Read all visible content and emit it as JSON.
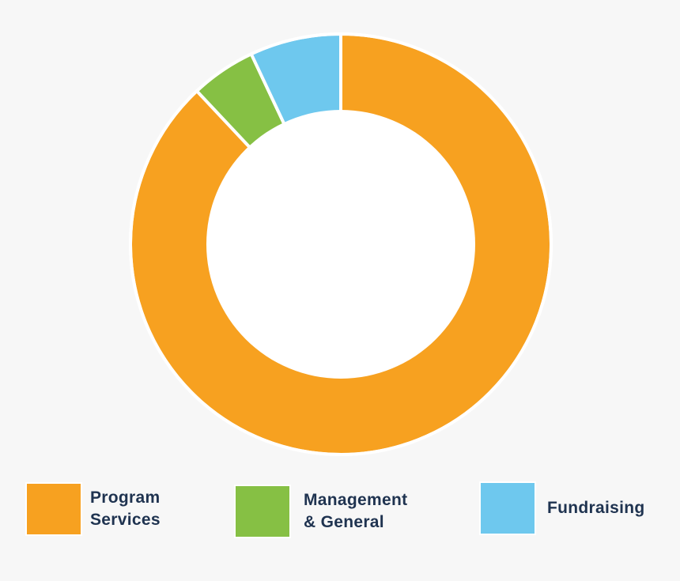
{
  "chart_data": {
    "type": "pie",
    "donut": true,
    "categories": [
      "Program Services",
      "Management & General",
      "Fundraising"
    ],
    "values": [
      88,
      5,
      7
    ],
    "unit": "percent",
    "colors": [
      "#f7a120",
      "#86c044",
      "#6ec8ee"
    ],
    "title": "",
    "legend_position": "bottom"
  },
  "legend": {
    "items": [
      {
        "lines": [
          "Program",
          "Services"
        ],
        "color": "#f7a120"
      },
      {
        "lines": [
          "Management",
          "& General"
        ],
        "color": "#86c044"
      },
      {
        "lines": [
          "Fundraising"
        ],
        "color": "#6ec8ee"
      }
    ]
  }
}
